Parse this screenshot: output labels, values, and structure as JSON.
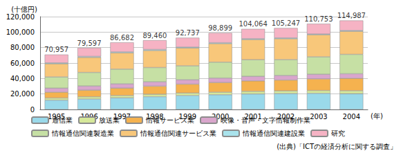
{
  "chart_data": {
    "type": "bar",
    "stacked": true,
    "ylabel": "(十億円)",
    "xlabel": "(年)",
    "source": "(出典)「ICTの経済分析に関する調査」",
    "categories": [
      "1995",
      "1996",
      "1997",
      "1998",
      "1999",
      "2000",
      "2001",
      "2002",
      "2003",
      "2004"
    ],
    "ylim": [
      0,
      120000
    ],
    "yticks": [
      0,
      {
        "value": 20000,
        "label": "20,000"
      },
      {
        "value": 40000,
        "label": "40,000"
      },
      {
        "value": 60000,
        "label": "60,000"
      },
      {
        "value": 80000,
        "label": "80,000"
      },
      {
        "value": 100000,
        "label": "100,000"
      },
      {
        "value": 120000,
        "label": "120,000"
      }
    ],
    "grid": true,
    "legend": "bottom",
    "series": [
      {
        "name": "通信業",
        "color": "#9ad9ea",
        "values": [
          12000,
          13500,
          15000,
          16500,
          18000,
          19000,
          20000,
          20500,
          20800,
          20300
        ]
      },
      {
        "name": "放送業",
        "color": "#d6e89a",
        "values": [
          2800,
          2900,
          3000,
          3100,
          3200,
          3300,
          3400,
          3500,
          3700,
          3900
        ]
      },
      {
        "name": "情報サービス業",
        "color": "#f5b24f",
        "values": [
          7500,
          8500,
          9500,
          10500,
          11500,
          12500,
          13500,
          14000,
          15000,
          16000
        ]
      },
      {
        "name": "映像・音声・文字情報制作業",
        "color": "#d9a6cc",
        "values": [
          5200,
          5400,
          5600,
          5600,
          5700,
          5800,
          5900,
          5900,
          6000,
          6000
        ]
      },
      {
        "name": "情報通信関連製造業",
        "color": "#c6e0a4",
        "values": [
          14500,
          17500,
          19000,
          18500,
          18000,
          20500,
          21500,
          20500,
          22500,
          25000
        ]
      },
      {
        "name": "情報通信関連サービス業",
        "color": "#f8c77a",
        "values": [
          17000,
          19500,
          21000,
          22000,
          23000,
          24000,
          26000,
          27000,
          28500,
          29800
        ]
      },
      {
        "name": "情報通信関連建設業",
        "color": "#a9e3ec",
        "values": [
          1200,
          1300,
          1300,
          1300,
          1200,
          1200,
          1100,
          1100,
          1000,
          1000
        ]
      },
      {
        "name": "研究",
        "color": "#f6b3c4",
        "values": [
          10757,
          10997,
          12282,
          11960,
          12137,
          12599,
          12664,
          12747,
          13253,
          12987
        ]
      }
    ],
    "totals": [
      70957,
      79597,
      86682,
      89460,
      92737,
      98899,
      104064,
      105247,
      110753,
      114987
    ],
    "total_labels": [
      "70,957",
      "79,597",
      "86,682",
      "89,460",
      "92,737",
      "98,899",
      "104,064",
      "105,247",
      "110,753",
      "114,987"
    ]
  }
}
